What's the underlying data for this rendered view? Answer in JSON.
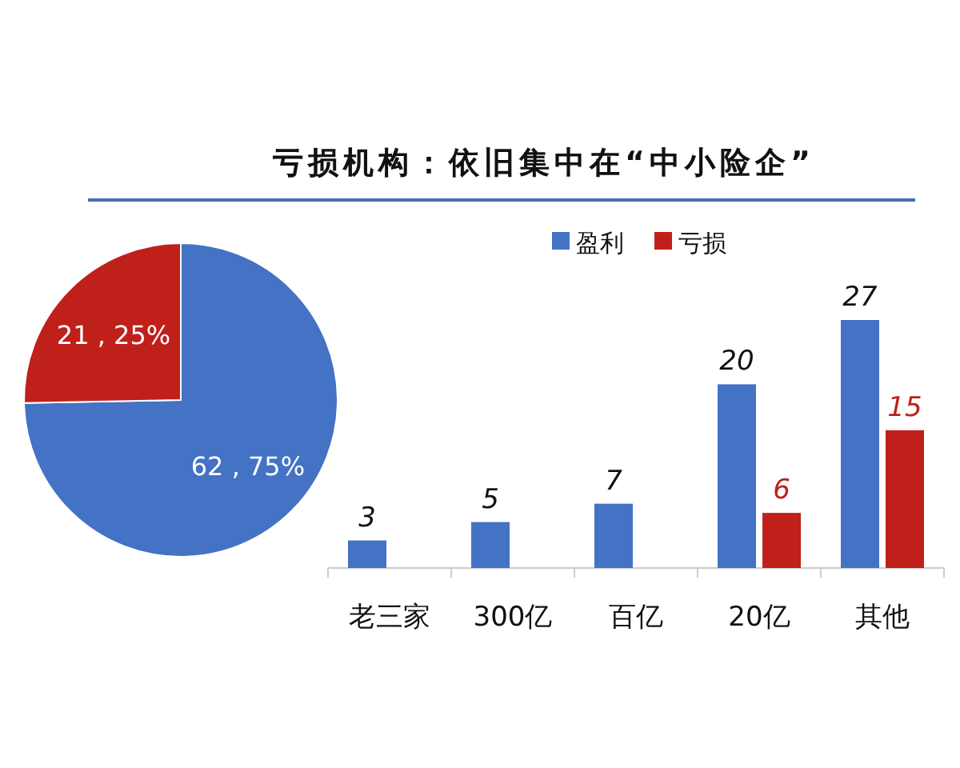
{
  "chart_data": [
    {
      "type": "pie",
      "title": "亏损机构：依旧集中在“中小险企”",
      "categories": [
        null,
        null
      ],
      "values": [
        62,
        21
      ],
      "colors": [
        "#4472c4",
        "#c0201a"
      ],
      "value_labels": [
        "62 , 75%",
        "21 , 25%"
      ]
    },
    {
      "type": "bar",
      "categories": [
        "老三家",
        "300亿",
        "百亿",
        "20亿",
        "其他"
      ],
      "series": [
        {
          "name": "盈利",
          "color": "#4472c4",
          "values": [
            3,
            5,
            7,
            20,
            27
          ]
        },
        {
          "name": "亏损",
          "color": "#c0201a",
          "values": [
            null,
            null,
            null,
            6,
            15
          ]
        }
      ],
      "data_labels": true,
      "legend": "top"
    }
  ]
}
